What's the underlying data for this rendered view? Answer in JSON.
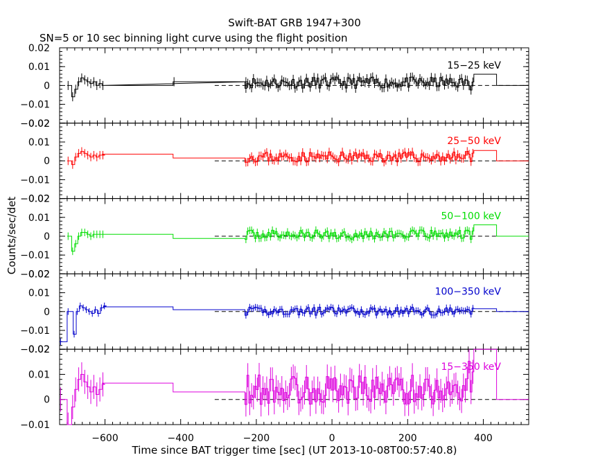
{
  "chart_data": {
    "type": "line",
    "title": "Swift-BAT GRB 1947+300",
    "subtitle": "SN=5 or 10 sec binning light curve using the flight position",
    "xlabel": "Time since BAT trigger time [sec] (UT 2013-10-08T00:57:40.8)",
    "ylabel": "Counts/sec/det",
    "xlim": [
      -720,
      520
    ],
    "xticks": [
      -600,
      -400,
      -200,
      0,
      200,
      400
    ],
    "xtick_labels": [
      "−600",
      "−400",
      "−200",
      "0",
      "200",
      "400"
    ],
    "panels": [
      {
        "label": "15−25 keV",
        "color": "#000000",
        "ylim": [
          -0.02,
          0.02
        ],
        "yticks": [
          -0.02,
          -0.01,
          0,
          0.01,
          0.02
        ],
        "ytick_labels": [
          "−0.02",
          "−0.01",
          "0",
          "0.01",
          "0.02"
        ],
        "bins": [
          [
            -700,
            0
          ],
          [
            -688,
            -0.006
          ],
          [
            -680,
            -0.002
          ],
          [
            -672,
            0.002
          ],
          [
            -664,
            0.004
          ],
          [
            -656,
            0.003
          ],
          [
            -648,
            0.002
          ],
          [
            -640,
            0.001
          ],
          [
            -632,
            0.002
          ],
          [
            -624,
            0
          ],
          [
            -616,
            0.001
          ],
          [
            -608,
            0
          ],
          [
            -420,
            0.002
          ],
          [
            -230,
            0.002
          ]
        ],
        "long_bins": [
          [
            -608,
            -420,
            0
          ],
          [
            -420,
            -230,
            0.002
          ],
          [
            375,
            435,
            0.006
          ],
          [
            435,
            520,
            0
          ]
        ],
        "noise_seed": 11,
        "noise_mean": 0.0015,
        "noise_amp": 0.003,
        "flare_end": 0.004
      },
      {
        "label": "25−50 keV",
        "color": "#ff0000",
        "ylim": [
          -0.02,
          0.02
        ],
        "yticks": [
          -0.02,
          -0.01,
          0,
          0.01,
          0.02
        ],
        "ytick_labels": [
          "−0.02",
          "−0.01",
          "0",
          "0.01",
          "0.02"
        ],
        "bins": [
          [
            -700,
            0
          ],
          [
            -688,
            -0.002
          ],
          [
            -680,
            0.002
          ],
          [
            -672,
            0.004
          ],
          [
            -664,
            0.005
          ],
          [
            -656,
            0.004
          ],
          [
            -648,
            0.003
          ],
          [
            -640,
            0.002
          ],
          [
            -632,
            0.003
          ],
          [
            -624,
            0.002
          ],
          [
            -616,
            0.003
          ],
          [
            -608,
            0.003
          ]
        ],
        "long_bins": [
          [
            -608,
            -420,
            0.0035
          ],
          [
            -420,
            -230,
            0.0015
          ],
          [
            375,
            435,
            0.0055
          ],
          [
            435,
            520,
            0
          ]
        ],
        "noise_seed": 23,
        "noise_mean": 0.002,
        "noise_amp": 0.0028,
        "flare_end": 0.006
      },
      {
        "label": "50−100 keV",
        "color": "#00dd00",
        "ylim": [
          -0.02,
          0.02
        ],
        "yticks": [
          -0.02,
          -0.01,
          0,
          0.01,
          0.02
        ],
        "ytick_labels": [
          "−0.02",
          "−0.01",
          "0",
          "0.01",
          "0.02"
        ],
        "bins": [
          [
            -700,
            0
          ],
          [
            -688,
            -0.008
          ],
          [
            -680,
            -0.004
          ],
          [
            -672,
            0
          ],
          [
            -664,
            0.002
          ],
          [
            -656,
            0.002
          ],
          [
            -648,
            0.001
          ],
          [
            -640,
            0
          ],
          [
            -632,
            0.001
          ],
          [
            -624,
            0.001
          ],
          [
            -616,
            0.001
          ],
          [
            -608,
            0.001
          ]
        ],
        "long_bins": [
          [
            -608,
            -420,
            0.001
          ],
          [
            -420,
            -230,
            -0.0012
          ],
          [
            375,
            435,
            0.006
          ],
          [
            435,
            520,
            0
          ]
        ],
        "noise_seed": 37,
        "noise_mean": 0.0008,
        "noise_amp": 0.0025,
        "flare_end": 0.004
      },
      {
        "label": "100−350 keV",
        "color": "#0000cc",
        "ylim": [
          -0.02,
          0.02
        ],
        "yticks": [
          -0.02,
          -0.01,
          0,
          0.01,
          0.02
        ],
        "ytick_labels": [
          "−0.02",
          "−0.01",
          "0",
          "0.01",
          "0.02"
        ],
        "bins": [
          [
            -720,
            -0.016
          ],
          [
            -700,
            0
          ],
          [
            -684,
            -0.012
          ],
          [
            -676,
            0
          ],
          [
            -668,
            0.003
          ],
          [
            -660,
            0.002
          ],
          [
            -652,
            0.001
          ],
          [
            -644,
            0
          ],
          [
            -636,
            -0.001
          ],
          [
            -628,
            0.001
          ],
          [
            -620,
            -0.001
          ],
          [
            -612,
            0.002
          ],
          [
            -604,
            0.003
          ]
        ],
        "long_bins": [
          [
            -604,
            -420,
            0.0025
          ],
          [
            -420,
            -230,
            0.001
          ],
          [
            375,
            435,
            0.0015
          ],
          [
            435,
            520,
            0
          ]
        ],
        "noise_seed": 41,
        "noise_mean": 0.0002,
        "noise_amp": 0.0022,
        "flare_end": 0.003
      },
      {
        "label": "15−350 keV",
        "color": "#dd00dd",
        "ylim": [
          -0.01,
          0.02
        ],
        "yticks": [
          -0.01,
          0,
          0.01,
          0.02
        ],
        "ytick_labels": [
          "−0.01",
          "0",
          "0.01",
          "0.02"
        ],
        "bins": [
          [
            -720,
            0
          ],
          [
            -700,
            -0.01
          ],
          [
            -688,
            -0.003
          ],
          [
            -680,
            0.004
          ],
          [
            -672,
            0.008
          ],
          [
            -664,
            0.01
          ],
          [
            -656,
            0.007
          ],
          [
            -648,
            0.005
          ],
          [
            -640,
            0.003
          ],
          [
            -632,
            0.005
          ],
          [
            -624,
            0.002
          ],
          [
            -616,
            0.004
          ],
          [
            -608,
            0.006
          ]
        ],
        "long_bins": [
          [
            -608,
            -420,
            0.0065
          ],
          [
            -420,
            -230,
            0.003
          ],
          [
            375,
            435,
            0.02
          ],
          [
            435,
            520,
            0
          ]
        ],
        "noise_seed": 53,
        "noise_mean": 0.004,
        "noise_amp": 0.006,
        "flare_end": 0.012
      }
    ]
  }
}
